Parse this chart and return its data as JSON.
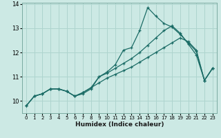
{
  "xlabel": "Humidex (Indice chaleur)",
  "bg_color": "#cce9e4",
  "grid_color": "#aed4ce",
  "line_color": "#1a6b65",
  "xlim": [
    -0.5,
    23.5
  ],
  "ylim": [
    9.5,
    14.05
  ],
  "yticks": [
    10,
    11,
    12,
    13,
    14
  ],
  "xticks": [
    0,
    1,
    2,
    3,
    4,
    5,
    6,
    7,
    8,
    9,
    10,
    11,
    12,
    13,
    14,
    15,
    16,
    17,
    18,
    19,
    20,
    21,
    22,
    23
  ],
  "lines": [
    [
      9.8,
      10.2,
      10.3,
      10.5,
      10.5,
      10.4,
      10.2,
      10.3,
      10.5,
      11.0,
      11.2,
      11.5,
      12.1,
      12.2,
      12.9,
      13.85,
      13.5,
      13.2,
      13.05,
      12.75,
      12.4,
      12.05,
      10.85,
      11.35
    ],
    [
      9.8,
      10.2,
      10.3,
      10.5,
      10.5,
      10.4,
      10.2,
      10.35,
      10.55,
      11.0,
      11.15,
      11.35,
      11.55,
      11.75,
      12.0,
      12.3,
      12.6,
      12.9,
      13.1,
      12.8,
      12.35,
      11.9,
      10.85,
      11.35
    ],
    [
      9.8,
      10.2,
      10.3,
      10.5,
      10.5,
      10.4,
      10.2,
      10.35,
      10.55,
      10.75,
      10.95,
      11.1,
      11.25,
      11.4,
      11.6,
      11.8,
      12.0,
      12.2,
      12.4,
      12.6,
      12.45,
      12.1,
      10.85,
      11.35
    ]
  ]
}
